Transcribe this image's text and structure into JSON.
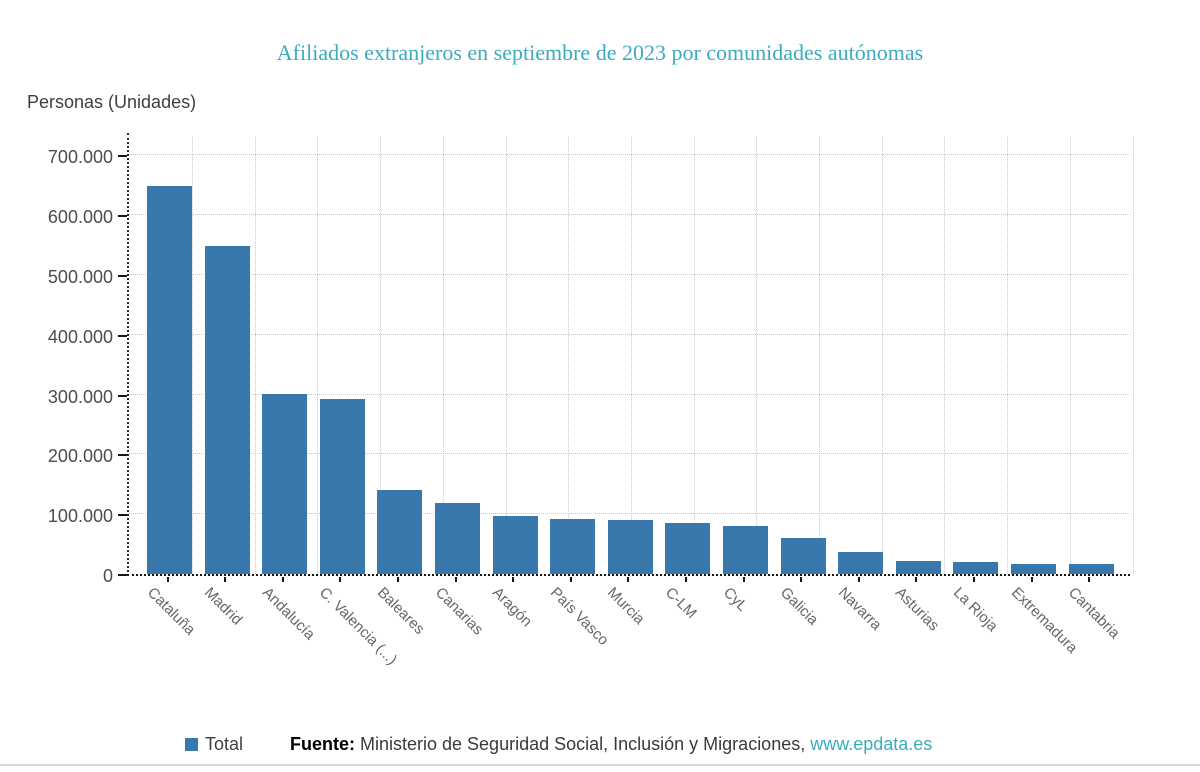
{
  "chart_data": {
    "type": "bar",
    "title": "Afiliados extranjeros en septiembre de 2023 por comunidades autónomas",
    "ylabel": "Personas (Unidades)",
    "xlabel": "",
    "categories": [
      "Cataluña",
      "Madrid",
      "Andalucía",
      "C. Valencia (...)",
      "Baleares",
      "Canarias",
      "Aragón",
      "País Vasco",
      "Murcia",
      "C-LM",
      "CyL",
      "Galicia",
      "Navarra",
      "Asturias",
      "La Rioja",
      "Extremadura",
      "Cantabria"
    ],
    "series": [
      {
        "name": "Total",
        "values": [
          649000,
          549000,
          301000,
          293000,
          141000,
          118000,
          97000,
          92000,
          91000,
          85000,
          81000,
          60000,
          36000,
          21000,
          20000,
          17000,
          16000
        ]
      }
    ],
    "ylim": [
      0,
      700000
    ],
    "ytick_step": 100000,
    "ytick_labels": [
      "0",
      "100.000",
      "200.000",
      "300.000",
      "400.000",
      "500.000",
      "600.000",
      "700.000"
    ],
    "grid": "dotted",
    "legend_position": "bottom-left",
    "bar_color": "#3878ad",
    "title_color": "#3bacbf",
    "axis_label_color": "#4d4d4d",
    "category_label_rotation_deg": 45
  },
  "footer": {
    "legend_label": "Total",
    "source_label": "Fuente:",
    "source_text": " Ministerio de Seguridad Social, Inclusión y Migraciones, ",
    "source_link": "www.epdata.es",
    "link_color": "#3aacbe"
  }
}
